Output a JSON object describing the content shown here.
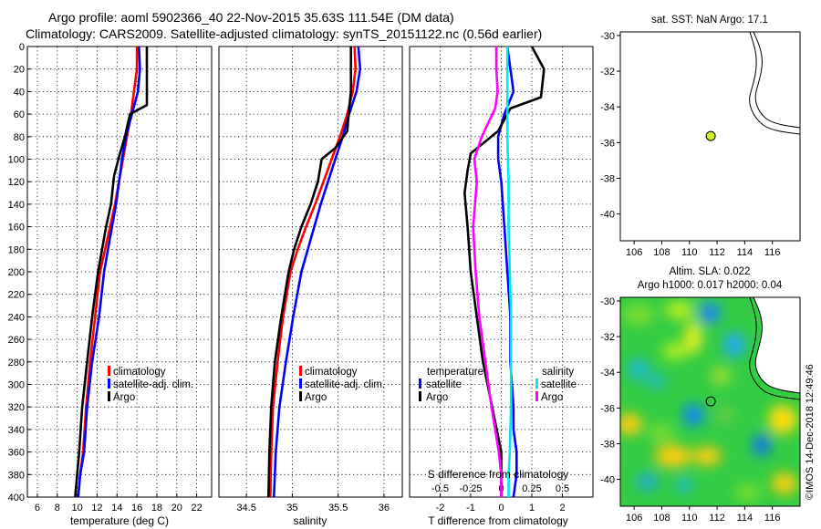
{
  "title": {
    "line1": "Argo profile: aoml 5902366_40 22-Nov-2015 35.63S 111.54E (DM data)",
    "line2": "Climatology: CARS2009. Satellite-adjusted climatology: synTS_20151122.nc (0.56d earlier)"
  },
  "colors": {
    "climatology": "#ff0000",
    "satellite": "#0000ff",
    "argo": "#000000",
    "sat_s": "#00e5ee",
    "argo_s": "#ff00ff"
  },
  "chart_data": [
    {
      "id": "temperature",
      "type": "line",
      "xlabel": "temperature (deg C)",
      "ylabel": "",
      "xlim": [
        5,
        23.5
      ],
      "ylim": [
        0,
        400
      ],
      "xticks": [
        6,
        8,
        10,
        12,
        14,
        16,
        18,
        20,
        22
      ],
      "xtick_labels": [
        "6",
        "8",
        "10",
        "12",
        "14",
        "16",
        "18",
        "20",
        "22"
      ],
      "yticks": [
        0,
        20,
        40,
        60,
        80,
        100,
        120,
        140,
        160,
        180,
        200,
        220,
        240,
        260,
        280,
        300,
        320,
        340,
        360,
        380,
        400
      ],
      "ytick_labels": [
        "0",
        "20",
        "40",
        "60",
        "80",
        "100",
        "120",
        "140",
        "160",
        "180",
        "200",
        "220",
        "240",
        "260",
        "280",
        "300",
        "320",
        "340",
        "360",
        "380",
        "400"
      ],
      "legend": [
        {
          "label": "climatology",
          "color": "#ff0000"
        },
        {
          "label": "satellite-adj. clim.",
          "color": "#0000ff"
        },
        {
          "label": "Argo",
          "color": "#000000"
        }
      ],
      "series": [
        {
          "name": "climatology",
          "color": "#ff0000",
          "x": [
            16.0,
            16.0,
            15.7,
            15.4,
            15.0,
            14.6,
            14.2,
            13.8,
            13.3,
            12.8,
            12.3,
            11.8,
            11.3,
            10.9,
            10.6,
            10.3,
            10.1
          ],
          "y": [
            0,
            20,
            40,
            60,
            80,
            100,
            120,
            140,
            160,
            180,
            200,
            240,
            280,
            320,
            360,
            380,
            400
          ]
        },
        {
          "name": "satellite-adj. clim.",
          "color": "#0000ff",
          "x": [
            16.2,
            16.3,
            16.1,
            15.5,
            14.9,
            14.5,
            14.2,
            13.9,
            13.5,
            13.1,
            12.7,
            12.2,
            11.5,
            11.0,
            10.7,
            10.3,
            10.1
          ],
          "y": [
            0,
            20,
            40,
            60,
            80,
            100,
            120,
            140,
            160,
            180,
            200,
            240,
            280,
            320,
            360,
            380,
            400
          ]
        },
        {
          "name": "Argo",
          "color": "#000000",
          "x": [
            17.0,
            17.0,
            17.0,
            17.0,
            15.3,
            14.8,
            14.3,
            13.7,
            13.4,
            12.9,
            12.5,
            12.1,
            11.5,
            11.0,
            10.5,
            10.2,
            10.0,
            9.8
          ],
          "y": [
            0,
            20,
            45,
            52,
            60,
            80,
            95,
            115,
            140,
            160,
            180,
            200,
            240,
            280,
            320,
            360,
            380,
            400
          ]
        }
      ]
    },
    {
      "id": "salinity",
      "type": "line",
      "xlabel": "salinity",
      "ylabel": "",
      "xlim": [
        34.2,
        36.2
      ],
      "ylim": [
        0,
        400
      ],
      "xticks": [
        34.5,
        35,
        35.5,
        36
      ],
      "xtick_labels": [
        "34.5",
        "35",
        "35.5",
        "36"
      ],
      "legend": [
        {
          "label": "climatology",
          "color": "#ff0000"
        },
        {
          "label": "satellite-adj. clim.",
          "color": "#0000ff"
        },
        {
          "label": "Argo",
          "color": "#000000"
        }
      ],
      "series": [
        {
          "name": "climatology",
          "color": "#ff0000",
          "x": [
            35.68,
            35.69,
            35.66,
            35.6,
            35.52,
            35.43,
            35.34,
            35.25,
            35.15,
            35.06,
            34.98,
            34.9,
            34.84,
            34.79,
            34.77,
            34.76
          ],
          "y": [
            0,
            20,
            40,
            60,
            80,
            100,
            120,
            140,
            160,
            180,
            200,
            240,
            280,
            320,
            360,
            400
          ]
        },
        {
          "name": "satellite-adj. clim.",
          "color": "#0000ff",
          "x": [
            35.72,
            35.74,
            35.7,
            35.62,
            35.55,
            35.47,
            35.39,
            35.31,
            35.24,
            35.17,
            35.1,
            35.01,
            34.93,
            34.86,
            34.82,
            34.8
          ],
          "y": [
            0,
            20,
            40,
            60,
            80,
            100,
            120,
            140,
            160,
            180,
            200,
            240,
            280,
            320,
            360,
            400
          ]
        },
        {
          "name": "Argo",
          "color": "#000000",
          "x": [
            35.64,
            35.64,
            35.64,
            35.62,
            35.6,
            35.47,
            35.32,
            35.28,
            35.2,
            35.1,
            35.02,
            34.96,
            34.88,
            34.81,
            34.77,
            34.75,
            34.74
          ],
          "y": [
            0,
            20,
            40,
            55,
            75,
            90,
            100,
            120,
            140,
            160,
            180,
            200,
            240,
            280,
            320,
            360,
            400
          ]
        }
      ]
    },
    {
      "id": "difference",
      "type": "line",
      "xlabel": "T difference from climatology",
      "xlabel2": "S difference from climatology",
      "xlim": [
        -3,
        3
      ],
      "ylim": [
        0,
        400
      ],
      "xticks": [
        -2,
        -1,
        0,
        1,
        2
      ],
      "xtick_labels": [
        "-2",
        "-1",
        "0",
        "1",
        "2"
      ],
      "xticks2": [
        -0.5,
        -0.25,
        0,
        0.25,
        0.5
      ],
      "xtick_labels2": [
        "-0.5",
        "-0.25",
        "0",
        "0.25",
        "0.5"
      ],
      "legend_temperature_title": "temperature",
      "legend_salinity_title": "salinity",
      "legend": [
        {
          "label": "satellite",
          "color": "#0000ff"
        },
        {
          "label": "Argo",
          "color": "#000000"
        },
        {
          "label": "satellite",
          "color": "#00e5ee"
        },
        {
          "label": "Argo",
          "color": "#ff00ff"
        }
      ],
      "series": [
        {
          "name": "T satellite",
          "color": "#0000ff",
          "x": [
            0.2,
            0.3,
            0.4,
            0.1,
            -0.1,
            -0.1,
            0.0,
            0.1,
            0.2,
            0.3,
            0.3,
            0.4,
            0.4,
            0.5,
            0.5,
            0.4
          ],
          "y": [
            0,
            20,
            40,
            60,
            80,
            100,
            120,
            160,
            200,
            240,
            280,
            320,
            340,
            360,
            380,
            400
          ]
        },
        {
          "name": "T Argo",
          "color": "#000000",
          "x": [
            1.0,
            1.2,
            1.4,
            1.3,
            0.3,
            -0.1,
            -1.0,
            -1.1,
            -1.2,
            -1.1,
            -1.0,
            -0.8,
            -0.6,
            -0.3,
            0.0,
            0.0,
            0.0
          ],
          "y": [
            0,
            10,
            20,
            45,
            55,
            75,
            95,
            110,
            130,
            160,
            200,
            240,
            280,
            320,
            360,
            380,
            400
          ]
        },
        {
          "name": "S satellite",
          "color": "#00e5ee",
          "x": [
            0.05,
            0.05,
            0.05,
            0.06,
            0.06,
            0.07,
            0.08,
            0.08,
            0.08,
            0.07,
            0.06,
            0.06
          ],
          "y": [
            0,
            40,
            80,
            120,
            160,
            200,
            240,
            280,
            320,
            360,
            380,
            400
          ]
        },
        {
          "name": "S Argo",
          "color": "#ff00ff",
          "x": [
            -0.04,
            -0.04,
            -0.03,
            -0.05,
            -0.16,
            -0.22,
            -0.2,
            -0.23,
            -0.21,
            -0.18,
            -0.13,
            -0.08,
            -0.02,
            0.0,
            0.0
          ],
          "y": [
            0,
            20,
            40,
            55,
            80,
            100,
            120,
            160,
            200,
            240,
            280,
            320,
            360,
            380,
            400
          ]
        }
      ]
    },
    {
      "id": "map_sst",
      "type": "scatter",
      "title": "sat. SST: NaN Argo: 17.1",
      "xlim": [
        105,
        118
      ],
      "ylim": [
        -41.5,
        -29.8
      ],
      "xticks": [
        106,
        108,
        110,
        112,
        114,
        116
      ],
      "xtick_labels": [
        "106",
        "108",
        "110",
        "112",
        "114",
        "116"
      ],
      "yticks": [
        -30,
        -32,
        -34,
        -36,
        -38,
        -40
      ],
      "ytick_labels": [
        "-30",
        "-32",
        "-34",
        "-36",
        "-38",
        "-40"
      ],
      "points": [
        {
          "x": 111.54,
          "y": -35.63,
          "label": "Argo"
        }
      ]
    },
    {
      "id": "map_sla",
      "type": "heatmap",
      "title_line1": "Altim. SLA: 0.022",
      "title_line2": "Argo h1000: 0.017 h2000: 0.04",
      "xlim": [
        105,
        118
      ],
      "ylim": [
        -41.5,
        -29.8
      ],
      "xticks": [
        106,
        108,
        110,
        112,
        114,
        116
      ],
      "xtick_labels": [
        "106",
        "108",
        "110",
        "112",
        "114",
        "116"
      ],
      "yticks": [
        -30,
        -32,
        -34,
        -36,
        -38,
        -40
      ],
      "ytick_labels": [
        "-30",
        "-32",
        "-34",
        "-36",
        "-38",
        "-40"
      ],
      "points": [
        {
          "x": 111.54,
          "y": -35.63,
          "label": "Argo"
        }
      ]
    }
  ],
  "footer": {
    "credit": "©IMOS 14-Dec-2018 12:49:46"
  }
}
